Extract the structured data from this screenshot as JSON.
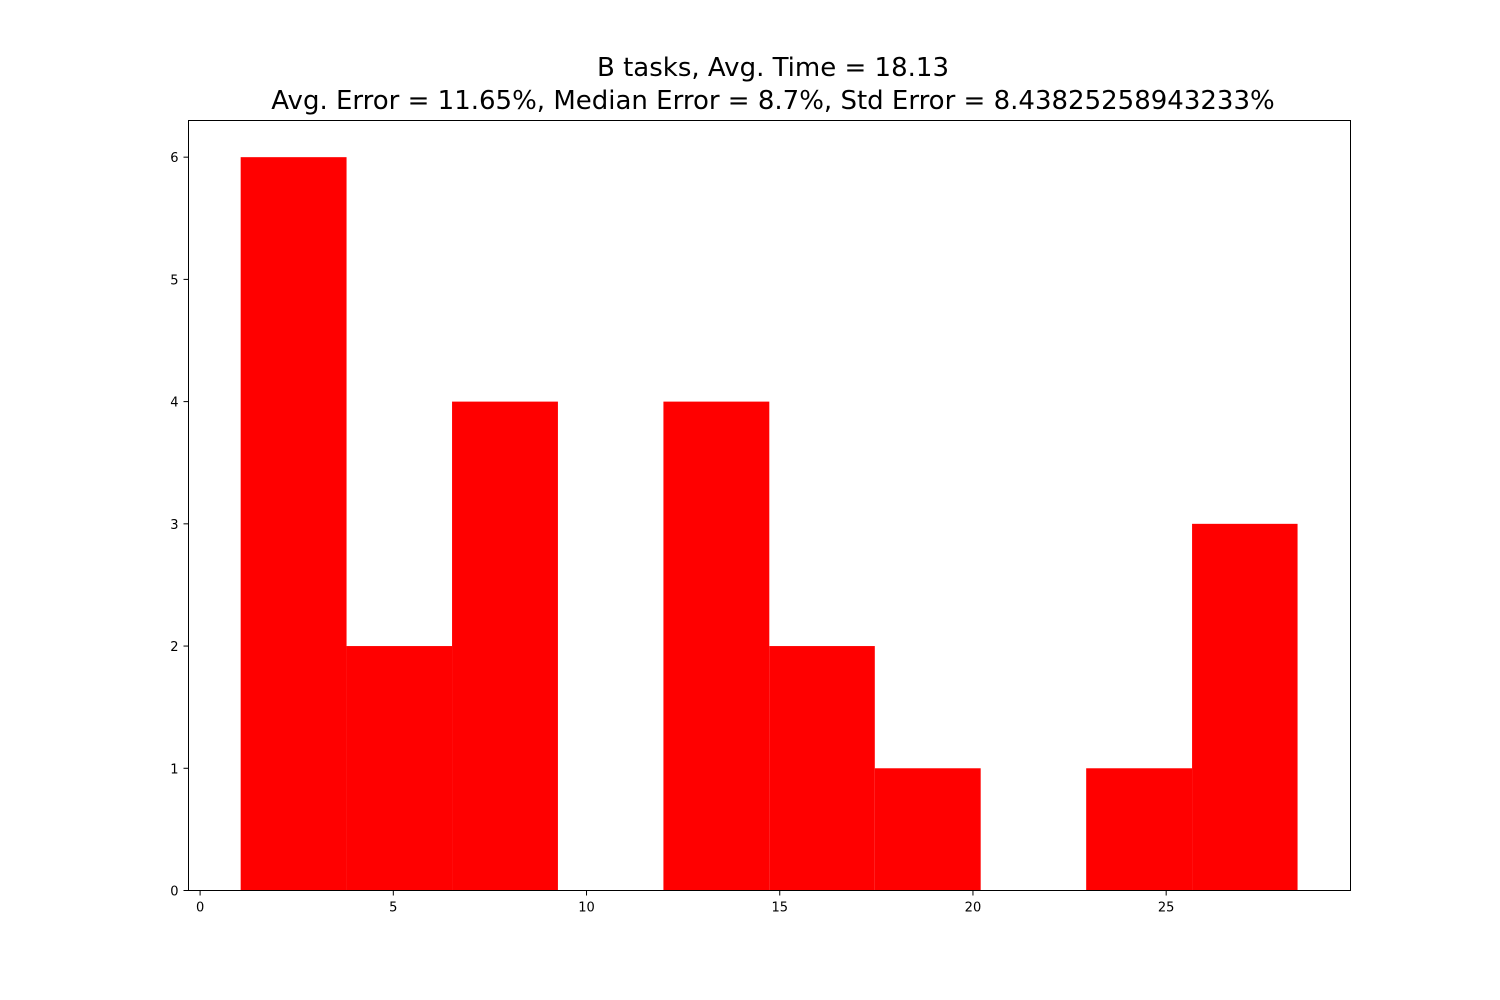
{
  "chart_data": {
    "type": "bar",
    "title_lines": [
      "B tasks, Avg. Time = 18.13",
      "Avg. Error = 11.65%, Median Error = 8.7%, Std Error = 8.43825258943233%"
    ],
    "xlabel": "",
    "ylabel": "",
    "bins": [
      {
        "x0": 1.05,
        "x1": 3.79,
        "count": 6
      },
      {
        "x0": 3.79,
        "x1": 6.52,
        "count": 2
      },
      {
        "x0": 6.52,
        "x1": 9.26,
        "count": 4
      },
      {
        "x0": 9.26,
        "x1": 11.99,
        "count": 0
      },
      {
        "x0": 11.99,
        "x1": 14.73,
        "count": 4
      },
      {
        "x0": 14.73,
        "x1": 17.46,
        "count": 2
      },
      {
        "x0": 17.46,
        "x1": 20.2,
        "count": 1
      },
      {
        "x0": 20.2,
        "x1": 22.93,
        "count": 0
      },
      {
        "x0": 22.93,
        "x1": 25.67,
        "count": 1
      },
      {
        "x0": 25.67,
        "x1": 28.4,
        "count": 3
      }
    ],
    "xlim": [
      -0.3,
      29.77
    ],
    "ylim": [
      0,
      6.3
    ],
    "xticks": [
      0,
      5,
      10,
      15,
      20,
      25
    ],
    "yticks": [
      0,
      1,
      2,
      3,
      4,
      5,
      6
    ],
    "bar_color": "#ff0000",
    "grid": false,
    "legend": "none"
  }
}
